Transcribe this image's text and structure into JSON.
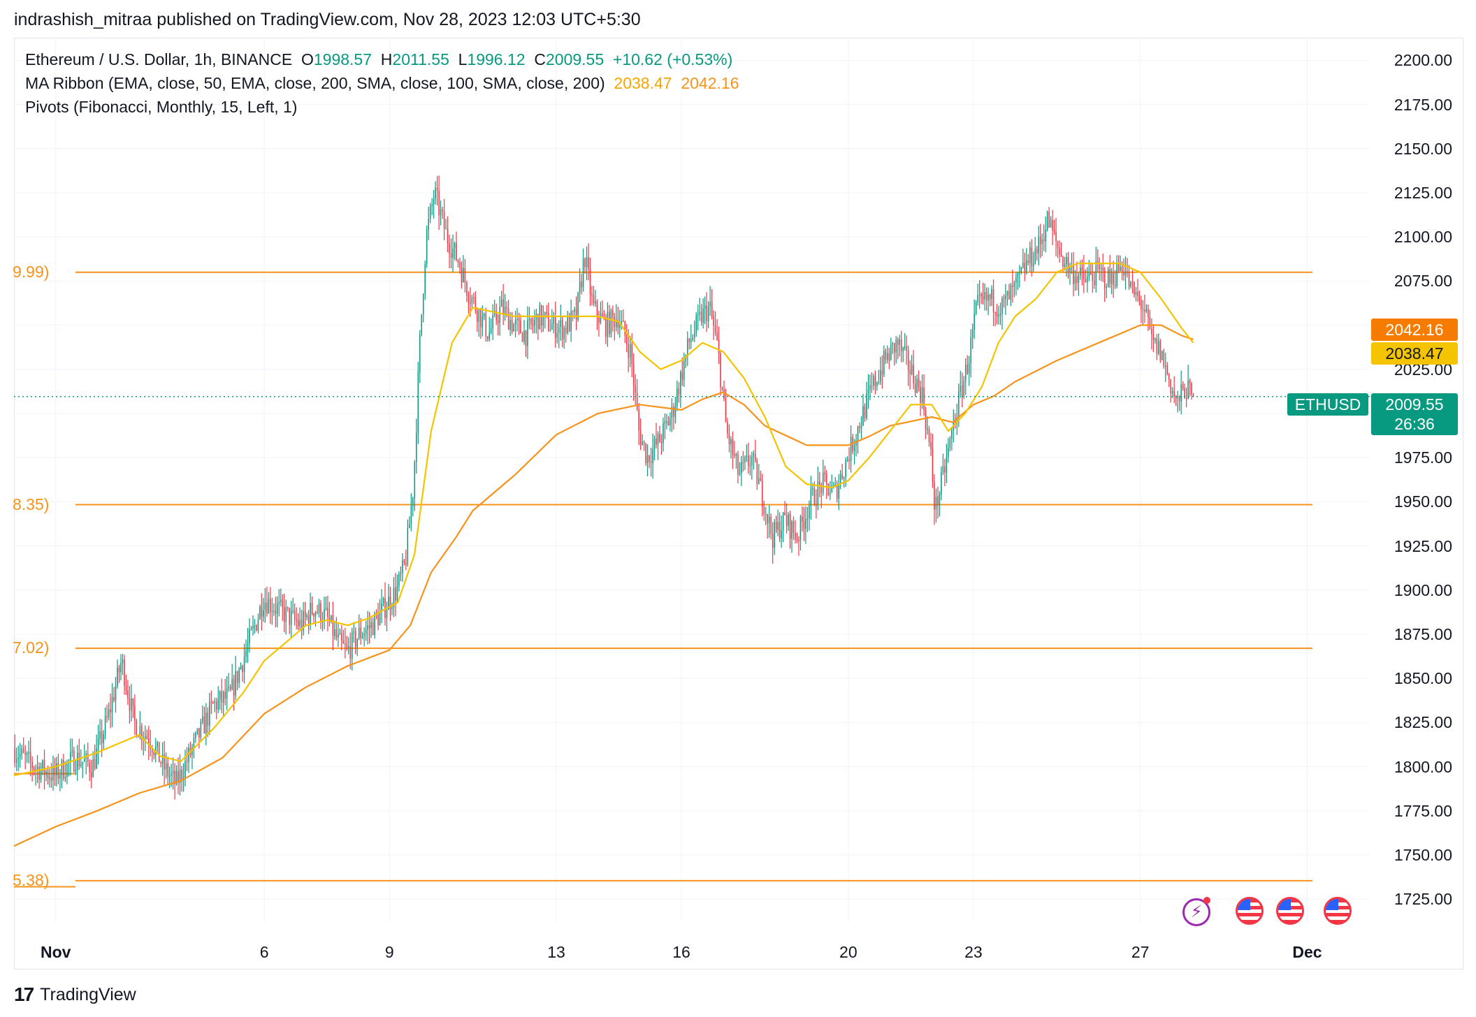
{
  "header": {
    "publisher": "indrashish_mitraa published on TradingView.com, Nov 28, 2023 12:03 UTC+5:30"
  },
  "legend": {
    "symbol": "Ethereum / U.S. Dollar, 1h, BINANCE",
    "o_label": "O",
    "o_value": "1998.57",
    "h_label": "H",
    "h_value": "2011.55",
    "l_label": "L",
    "l_value": "1996.12",
    "c_label": "C",
    "c_value": "2009.55",
    "change": "+10.62 (+0.53%)",
    "ma_name": "MA Ribbon (EMA, close, 50, EMA, close, 200, SMA, close, 100, SMA, close, 200)",
    "ma_val1": "2038.47",
    "ma_val2": "2042.16",
    "pivots_name": "Pivots (Fibonacci, Monthly, 15, Left, 1)"
  },
  "footer": {
    "logo_mark": "17",
    "brand": "TradingView"
  },
  "price_tags": {
    "ma2": "2042.16",
    "ma1": "2038.47",
    "symbol": "ETHUSD",
    "last": "2009.55",
    "countdown": "26:36"
  },
  "colors": {
    "up": "#089981",
    "down": "#f23645",
    "ema_fast": "#f5c400",
    "ema_slow": "#f7931a",
    "pivot": "#f7931a",
    "grid": "#f0f3fa"
  },
  "chart_data": {
    "type": "candlestick",
    "symbol": "ETHUSD",
    "interval": "1h",
    "y_ticks": [
      "2200.00",
      "2175.00",
      "2150.00",
      "2125.00",
      "2100.00",
      "2075.00",
      "2050.00",
      "2025.00",
      "1975.00",
      "1950.00",
      "1925.00",
      "1900.00",
      "1875.00",
      "1850.00",
      "1825.00",
      "1800.00",
      "1775.00",
      "1750.00",
      "1725.00"
    ],
    "y_tick_values": [
      2200,
      2175,
      2150,
      2125,
      2100,
      2075,
      2050,
      2025,
      1975,
      1950,
      1925,
      1900,
      1875,
      1850,
      1825,
      1800,
      1775,
      1750,
      1725
    ],
    "ylim": [
      1712,
      2212
    ],
    "x_ticks": [
      {
        "label": "Nov",
        "day": 1,
        "bold": true
      },
      {
        "label": "6",
        "day": 6,
        "bold": false
      },
      {
        "label": "9",
        "day": 9,
        "bold": false
      },
      {
        "label": "13",
        "day": 13,
        "bold": false
      },
      {
        "label": "16",
        "day": 16,
        "bold": false
      },
      {
        "label": "20",
        "day": 20,
        "bold": false
      },
      {
        "label": "23",
        "day": 23,
        "bold": false
      },
      {
        "label": "27",
        "day": 27,
        "bold": false
      },
      {
        "label": "Dec",
        "day": 31,
        "bold": true
      }
    ],
    "xlim_days": [
      0.0,
      32.5
    ],
    "last_day": 28.27,
    "last_price": 2009.55,
    "pivots": [
      {
        "label": "9.99)",
        "value": 2079.99
      },
      {
        "label": "8.35)",
        "value": 1948.35
      },
      {
        "label": "7.02)",
        "value": 1867.02
      },
      {
        "label": "5.38)",
        "value": 1735.38
      }
    ],
    "price_path": [
      [
        0.0,
        1810
      ],
      [
        0.5,
        1800
      ],
      [
        1.0,
        1795
      ],
      [
        1.5,
        1805
      ],
      [
        1.9,
        1800
      ],
      [
        2.3,
        1830
      ],
      [
        2.6,
        1860
      ],
      [
        2.9,
        1825
      ],
      [
        3.3,
        1815
      ],
      [
        3.6,
        1800
      ],
      [
        3.9,
        1790
      ],
      [
        4.2,
        1805
      ],
      [
        4.5,
        1820
      ],
      [
        4.8,
        1835
      ],
      [
        5.2,
        1840
      ],
      [
        5.5,
        1860
      ],
      [
        5.8,
        1880
      ],
      [
        6.0,
        1895
      ],
      [
        6.3,
        1890
      ],
      [
        6.6,
        1885
      ],
      [
        6.9,
        1880
      ],
      [
        7.2,
        1890
      ],
      [
        7.5,
        1885
      ],
      [
        7.8,
        1870
      ],
      [
        8.0,
        1865
      ],
      [
        8.3,
        1875
      ],
      [
        8.6,
        1880
      ],
      [
        8.9,
        1890
      ],
      [
        9.2,
        1900
      ],
      [
        9.4,
        1915
      ],
      [
        9.6,
        1960
      ],
      [
        9.75,
        2040
      ],
      [
        9.9,
        2100
      ],
      [
        10.1,
        2125
      ],
      [
        10.4,
        2100
      ],
      [
        10.7,
        2085
      ],
      [
        10.9,
        2070
      ],
      [
        11.1,
        2060
      ],
      [
        11.4,
        2045
      ],
      [
        11.7,
        2060
      ],
      [
        12.0,
        2050
      ],
      [
        12.3,
        2045
      ],
      [
        12.6,
        2055
      ],
      [
        12.9,
        2050
      ],
      [
        13.2,
        2048
      ],
      [
        13.5,
        2055
      ],
      [
        13.7,
        2090
      ],
      [
        13.9,
        2060
      ],
      [
        14.2,
        2050
      ],
      [
        14.5,
        2055
      ],
      [
        14.8,
        2035
      ],
      [
        15.0,
        1990
      ],
      [
        15.2,
        1975
      ],
      [
        15.5,
        1985
      ],
      [
        15.8,
        2000
      ],
      [
        16.0,
        2020
      ],
      [
        16.2,
        2040
      ],
      [
        16.5,
        2055
      ],
      [
        16.7,
        2060
      ],
      [
        16.9,
        2035
      ],
      [
        17.1,
        1990
      ],
      [
        17.4,
        1965
      ],
      [
        17.7,
        1975
      ],
      [
        18.0,
        1950
      ],
      [
        18.2,
        1930
      ],
      [
        18.5,
        1940
      ],
      [
        18.8,
        1930
      ],
      [
        19.1,
        1950
      ],
      [
        19.4,
        1960
      ],
      [
        19.7,
        1955
      ],
      [
        20.0,
        1975
      ],
      [
        20.3,
        1995
      ],
      [
        20.6,
        2015
      ],
      [
        20.9,
        2030
      ],
      [
        21.2,
        2040
      ],
      [
        21.5,
        2025
      ],
      [
        21.8,
        2010
      ],
      [
        22.0,
        1975
      ],
      [
        22.1,
        1945
      ],
      [
        22.3,
        1965
      ],
      [
        22.6,
        2000
      ],
      [
        22.9,
        2030
      ],
      [
        23.1,
        2060
      ],
      [
        23.4,
        2065
      ],
      [
        23.7,
        2060
      ],
      [
        24.0,
        2070
      ],
      [
        24.3,
        2085
      ],
      [
        24.6,
        2095
      ],
      [
        24.8,
        2110
      ],
      [
        25.1,
        2090
      ],
      [
        25.4,
        2080
      ],
      [
        25.7,
        2075
      ],
      [
        26.0,
        2080
      ],
      [
        26.3,
        2075
      ],
      [
        26.6,
        2085
      ],
      [
        26.8,
        2070
      ],
      [
        27.1,
        2060
      ],
      [
        27.3,
        2040
      ],
      [
        27.5,
        2035
      ],
      [
        27.7,
        2020
      ],
      [
        27.9,
        2005
      ],
      [
        28.1,
        2015
      ],
      [
        28.27,
        2009
      ]
    ],
    "ma_ribbon": {
      "ema50": [
        [
          0.0,
          1795
        ],
        [
          1.0,
          1800
        ],
        [
          2.0,
          1808
        ],
        [
          3.0,
          1818
        ],
        [
          3.5,
          1806
        ],
        [
          4.0,
          1803
        ],
        [
          4.8,
          1822
        ],
        [
          5.5,
          1842
        ],
        [
          6.0,
          1860
        ],
        [
          7.0,
          1880
        ],
        [
          7.5,
          1883
        ],
        [
          8.0,
          1880
        ],
        [
          8.5,
          1884
        ],
        [
          9.2,
          1893
        ],
        [
          9.6,
          1920
        ],
        [
          10.0,
          1990
        ],
        [
          10.5,
          2040
        ],
        [
          11.0,
          2060
        ],
        [
          12.0,
          2055
        ],
        [
          13.0,
          2055
        ],
        [
          14.0,
          2055
        ],
        [
          14.5,
          2052
        ],
        [
          15.0,
          2035
        ],
        [
          15.5,
          2025
        ],
        [
          16.0,
          2030
        ],
        [
          16.5,
          2040
        ],
        [
          17.0,
          2035
        ],
        [
          17.5,
          2020
        ],
        [
          18.0,
          1998
        ],
        [
          18.5,
          1970
        ],
        [
          19.0,
          1960
        ],
        [
          19.6,
          1958
        ],
        [
          20.0,
          1962
        ],
        [
          20.5,
          1975
        ],
        [
          21.0,
          1990
        ],
        [
          21.5,
          2005
        ],
        [
          22.0,
          2005
        ],
        [
          22.4,
          1990
        ],
        [
          22.8,
          2000
        ],
        [
          23.2,
          2015
        ],
        [
          23.6,
          2040
        ],
        [
          24.0,
          2055
        ],
        [
          24.5,
          2065
        ],
        [
          25.0,
          2080
        ],
        [
          25.5,
          2085
        ],
        [
          26.0,
          2085
        ],
        [
          26.5,
          2085
        ],
        [
          27.0,
          2080
        ],
        [
          27.5,
          2065
        ],
        [
          28.0,
          2048
        ],
        [
          28.27,
          2040
        ]
      ],
      "ema200": [
        [
          0.0,
          1755
        ],
        [
          1.0,
          1766
        ],
        [
          2.0,
          1775
        ],
        [
          3.0,
          1785
        ],
        [
          4.0,
          1792
        ],
        [
          5.0,
          1805
        ],
        [
          6.0,
          1830
        ],
        [
          7.0,
          1845
        ],
        [
          8.0,
          1857
        ],
        [
          9.0,
          1866
        ],
        [
          9.5,
          1880
        ],
        [
          10.0,
          1910
        ],
        [
          10.6,
          1930
        ],
        [
          11.0,
          1945
        ],
        [
          12.0,
          1965
        ],
        [
          13.0,
          1988
        ],
        [
          14.0,
          2000
        ],
        [
          15.0,
          2005
        ],
        [
          16.0,
          2002
        ],
        [
          16.5,
          2008
        ],
        [
          17.0,
          2012
        ],
        [
          17.5,
          2005
        ],
        [
          18.0,
          1993
        ],
        [
          19.0,
          1982
        ],
        [
          20.0,
          1982
        ],
        [
          20.5,
          1987
        ],
        [
          21.0,
          1993
        ],
        [
          22.0,
          1998
        ],
        [
          22.5,
          1995
        ],
        [
          23.0,
          2005
        ],
        [
          23.5,
          2010
        ],
        [
          24.0,
          2018
        ],
        [
          25.0,
          2030
        ],
        [
          26.0,
          2040
        ],
        [
          27.0,
          2050
        ],
        [
          27.5,
          2050
        ],
        [
          28.0,
          2044
        ],
        [
          28.27,
          2042
        ]
      ]
    }
  }
}
